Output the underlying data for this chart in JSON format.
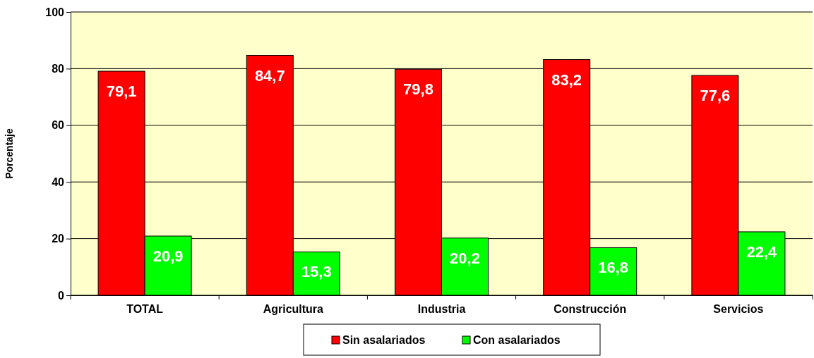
{
  "chart_data": {
    "type": "bar",
    "ylabel": "Porcentaje",
    "categories": [
      "TOTAL",
      "Agricultura",
      "Industria",
      "Construcción",
      "Servicios"
    ],
    "series": [
      {
        "name": "Sin asalariados",
        "color": "#ff0000",
        "values": [
          79.1,
          84.7,
          79.8,
          83.2,
          77.6
        ],
        "value_labels": [
          "79,1",
          "84,7",
          "79,8",
          "83,2",
          "77,6"
        ]
      },
      {
        "name": "Con asalariados",
        "color": "#00ff00",
        "values": [
          20.9,
          15.3,
          20.2,
          16.8,
          22.4
        ],
        "value_labels": [
          "20,9",
          "15,3",
          "20,2",
          "16,8",
          "22,4"
        ]
      }
    ],
    "ylim": [
      0,
      100
    ],
    "yticks": [
      0,
      20,
      40,
      60,
      80,
      100
    ],
    "grid": "y",
    "legend": "bottom"
  }
}
